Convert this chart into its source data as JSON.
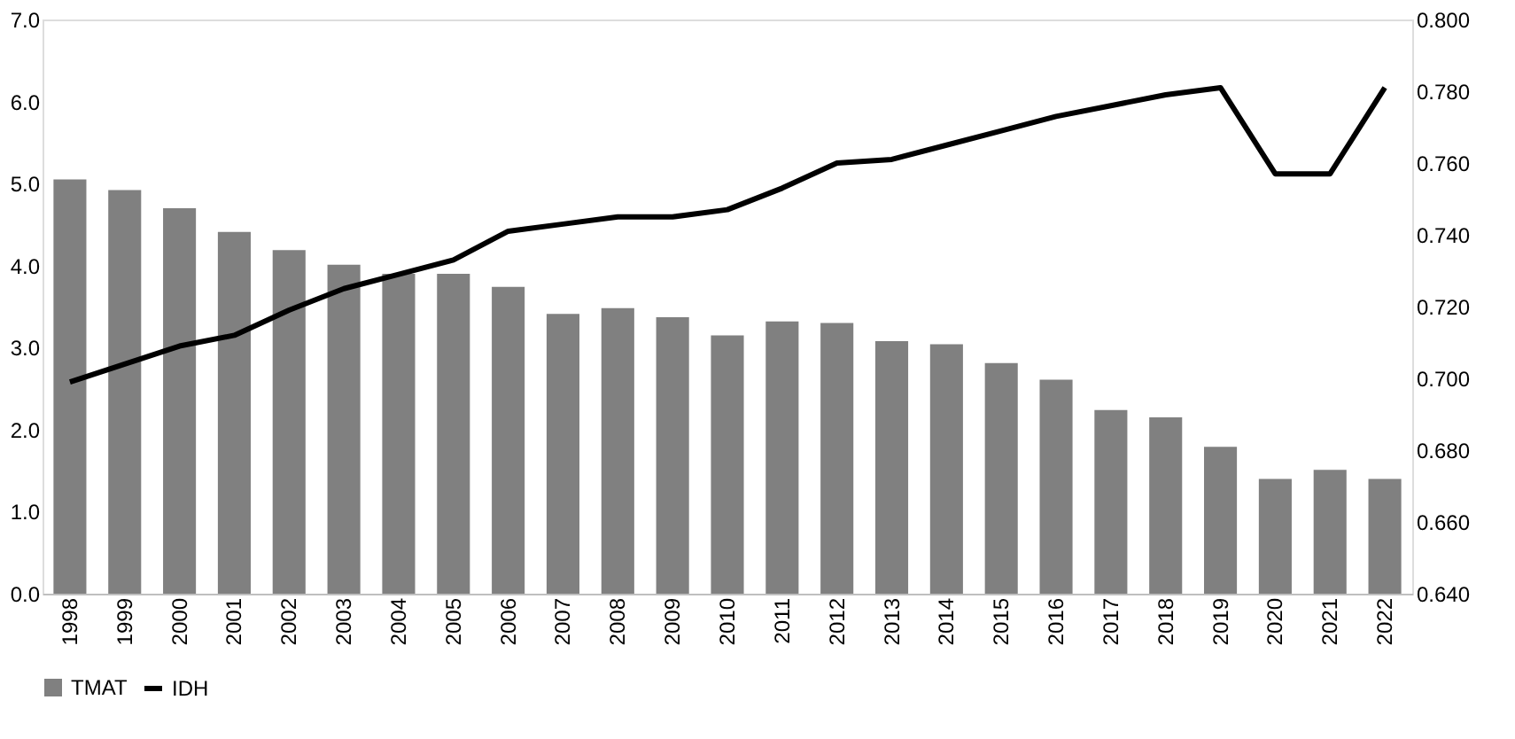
{
  "chart_data": {
    "type": "bar",
    "categories": [
      "1998",
      "1999",
      "2000",
      "2001",
      "2002",
      "2003",
      "2004",
      "2005",
      "2006",
      "2007",
      "2008",
      "2009",
      "2010",
      "2011",
      "2012",
      "2013",
      "2014",
      "2015",
      "2016",
      "2017",
      "2018",
      "2019",
      "2020",
      "2021",
      "2022"
    ],
    "series": [
      {
        "name": "TMAT",
        "color": "#808080",
        "values": [
          5.05,
          4.92,
          4.7,
          4.41,
          4.19,
          4.01,
          3.9,
          3.9,
          3.74,
          3.41,
          3.48,
          3.37,
          3.15,
          3.32,
          3.3,
          3.08,
          3.04,
          2.81,
          2.61,
          2.24,
          2.15,
          1.79,
          1.4,
          1.51,
          1.4
        ]
      },
      {
        "name": "IDH",
        "type": "line",
        "axis": "y2",
        "color": "#000000",
        "values": [
          0.699,
          0.704,
          0.709,
          0.712,
          0.719,
          0.725,
          0.729,
          0.733,
          0.741,
          0.743,
          0.745,
          0.745,
          0.747,
          0.753,
          0.76,
          0.761,
          0.765,
          0.769,
          0.773,
          0.776,
          0.779,
          0.781,
          0.757,
          0.757,
          0.781
        ]
      }
    ],
    "ylim": [
      0,
      7
    ],
    "yticks": [
      {
        "value": 0,
        "label": "0.0"
      },
      {
        "value": 1,
        "label": "1.0"
      },
      {
        "value": 2,
        "label": "2.0"
      },
      {
        "value": 3,
        "label": "3.0"
      },
      {
        "value": 4,
        "label": "4.0"
      },
      {
        "value": 5,
        "label": "5.0"
      },
      {
        "value": 6,
        "label": "6.0"
      },
      {
        "value": 7,
        "label": "7.0"
      }
    ],
    "y2lim": [
      0.64,
      0.8
    ],
    "y2ticks": [
      {
        "value": 0.64,
        "label": "0.640"
      },
      {
        "value": 0.66,
        "label": "0.660"
      },
      {
        "value": 0.68,
        "label": "0.680"
      },
      {
        "value": 0.7,
        "label": "0.700"
      },
      {
        "value": 0.72,
        "label": "0.720"
      },
      {
        "value": 0.74,
        "label": "0.740"
      },
      {
        "value": 0.76,
        "label": "0.760"
      },
      {
        "value": 0.78,
        "label": "0.780"
      },
      {
        "value": 0.8,
        "label": "0.800"
      }
    ],
    "grid": false,
    "legend": "bottom",
    "marker": "none",
    "line_style": "solid"
  }
}
